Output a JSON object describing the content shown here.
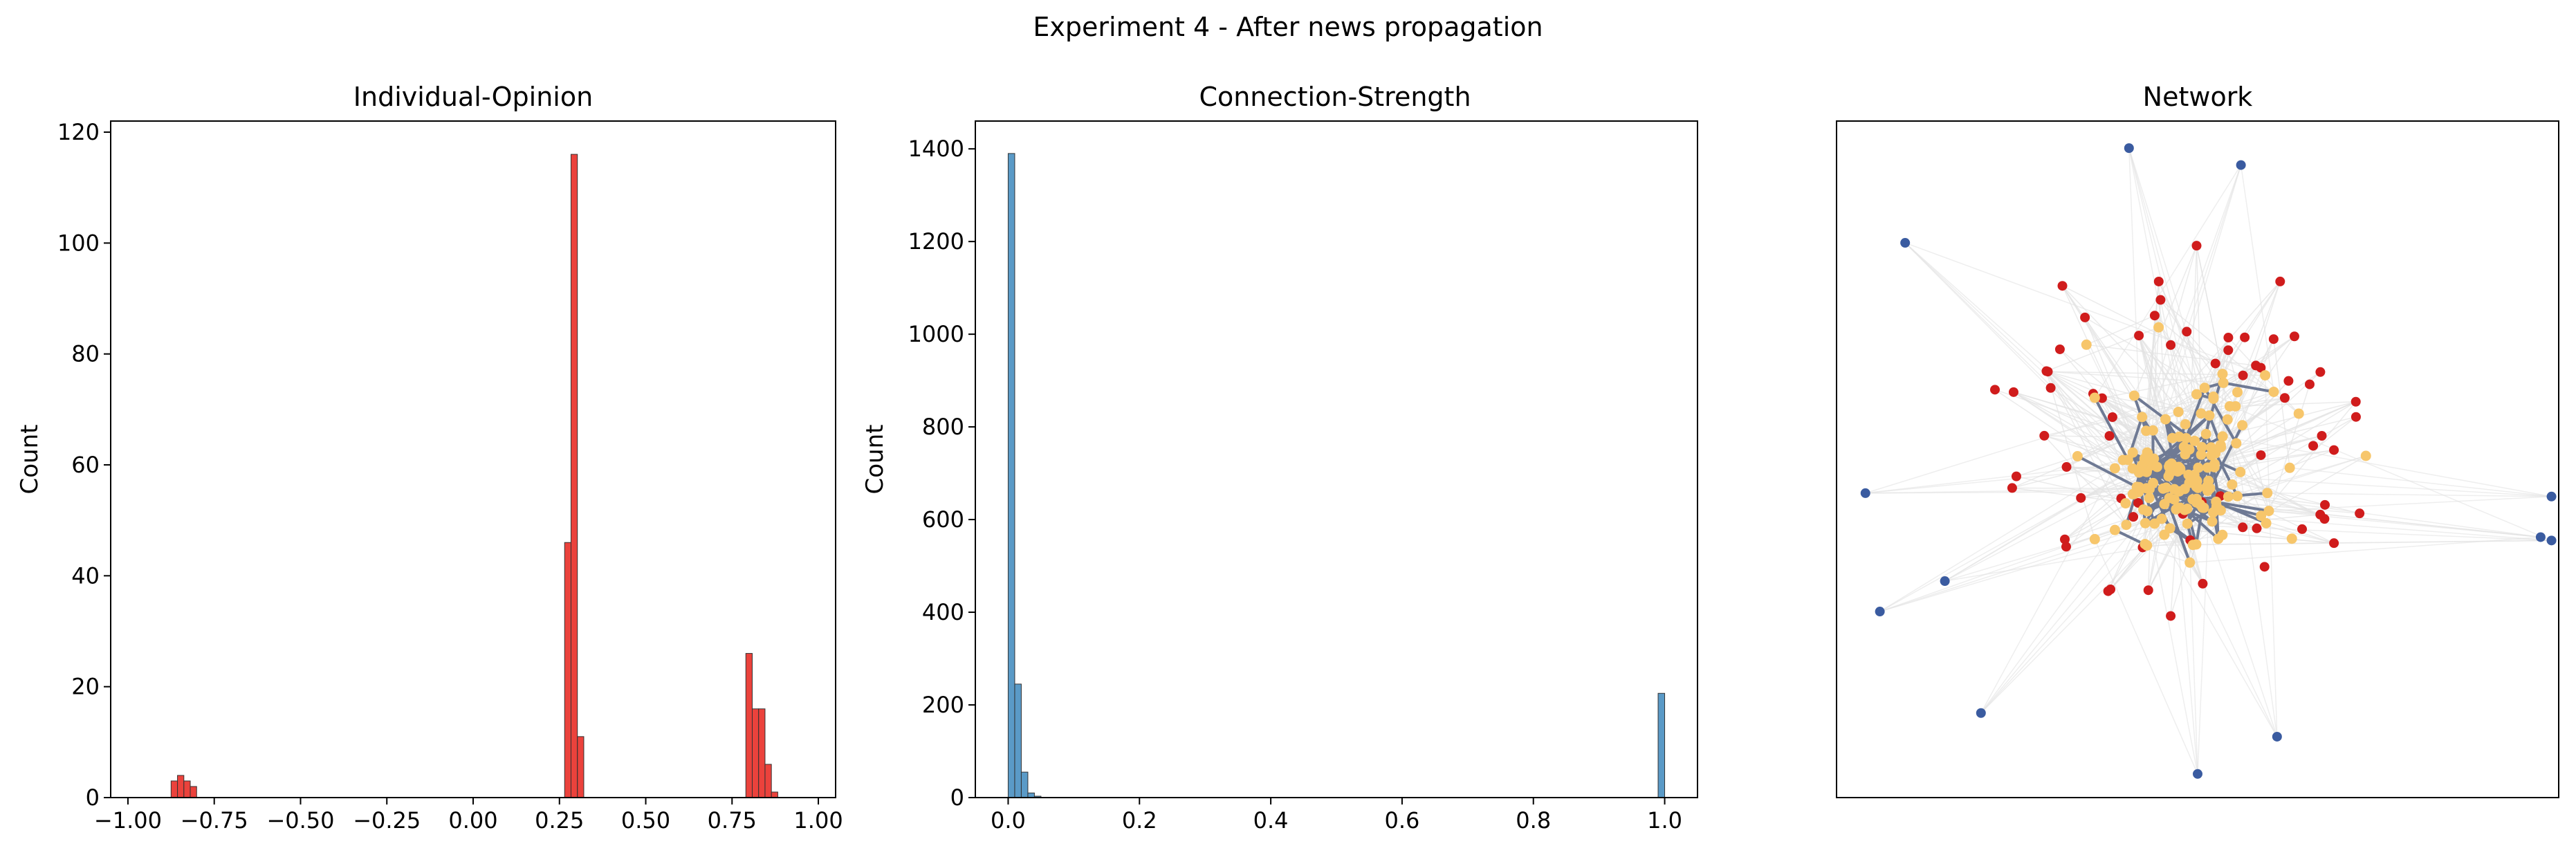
{
  "figure": {
    "suptitle": "Experiment 4 - After news propagation"
  },
  "chart_data": [
    {
      "type": "bar",
      "title": "Individual-Opinion",
      "xlabel": "",
      "ylabel": "Count",
      "xlim": [
        -1.05,
        1.05
      ],
      "ylim": [
        0,
        122
      ],
      "xticks": [
        -1.0,
        -0.75,
        -0.5,
        -0.25,
        0.0,
        0.25,
        0.5,
        0.75,
        1.0
      ],
      "xtick_labels": [
        "−1.00",
        "−0.75",
        "−0.50",
        "−0.25",
        "0.00",
        "0.25",
        "0.50",
        "0.75",
        "1.00"
      ],
      "yticks": [
        0,
        20,
        40,
        60,
        80,
        100,
        120
      ],
      "ytick_labels": [
        "0",
        "20",
        "40",
        "60",
        "80",
        "100",
        "120"
      ],
      "bin_width": 0.0185,
      "bins": [
        {
          "x": -0.875,
          "count": 3
        },
        {
          "x": -0.8565,
          "count": 4
        },
        {
          "x": -0.838,
          "count": 3
        },
        {
          "x": -0.8195,
          "count": 2
        },
        {
          "x": 0.265,
          "count": 46
        },
        {
          "x": 0.2835,
          "count": 116
        },
        {
          "x": 0.302,
          "count": 11
        },
        {
          "x": 0.79,
          "count": 26
        },
        {
          "x": 0.8085,
          "count": 16
        },
        {
          "x": 0.827,
          "count": 16
        },
        {
          "x": 0.8455,
          "count": 6
        },
        {
          "x": 0.864,
          "count": 1
        }
      ],
      "color": "#e8211a",
      "grid": false
    },
    {
      "type": "bar",
      "title": "Connection-Strength",
      "xlabel": "",
      "ylabel": "Count",
      "xlim": [
        -0.05,
        1.05
      ],
      "ylim": [
        0,
        1460
      ],
      "xticks": [
        0.0,
        0.2,
        0.4,
        0.6,
        0.8,
        1.0
      ],
      "xtick_labels": [
        "0.0",
        "0.2",
        "0.4",
        "0.6",
        "0.8",
        "1.0"
      ],
      "yticks": [
        0,
        200,
        400,
        600,
        800,
        1000,
        1200,
        1400
      ],
      "ytick_labels": [
        "0",
        "200",
        "400",
        "600",
        "800",
        "1000",
        "1200",
        "1400"
      ],
      "bin_width": 0.01,
      "bins": [
        {
          "x": 0.0,
          "count": 1390
        },
        {
          "x": 0.01,
          "count": 245
        },
        {
          "x": 0.02,
          "count": 55
        },
        {
          "x": 0.03,
          "count": 10
        },
        {
          "x": 0.04,
          "count": 3
        },
        {
          "x": 0.99,
          "count": 225
        }
      ],
      "color": "#3d88bd",
      "grid": false
    },
    {
      "type": "network",
      "title": "Network",
      "node_groups": [
        {
          "group": "outer",
          "color": "#3a5ba0"
        },
        {
          "group": "middle",
          "color": "#d01c1c"
        },
        {
          "group": "core",
          "color": "#f7c66b"
        }
      ],
      "edge_colors": {
        "core": "#6f7a94",
        "faint": "#e3e3e3"
      },
      "nodes_outer": [
        [
          0.405,
          0.96
        ],
        [
          0.56,
          0.935
        ],
        [
          0.095,
          0.82
        ],
        [
          0.04,
          0.45
        ],
        [
          0.99,
          0.445
        ],
        [
          0.99,
          0.38
        ],
        [
          0.975,
          0.385
        ],
        [
          0.15,
          0.32
        ],
        [
          0.06,
          0.275
        ],
        [
          0.2,
          0.125
        ],
        [
          0.61,
          0.09
        ],
        [
          0.5,
          0.035
        ]
      ]
    }
  ]
}
